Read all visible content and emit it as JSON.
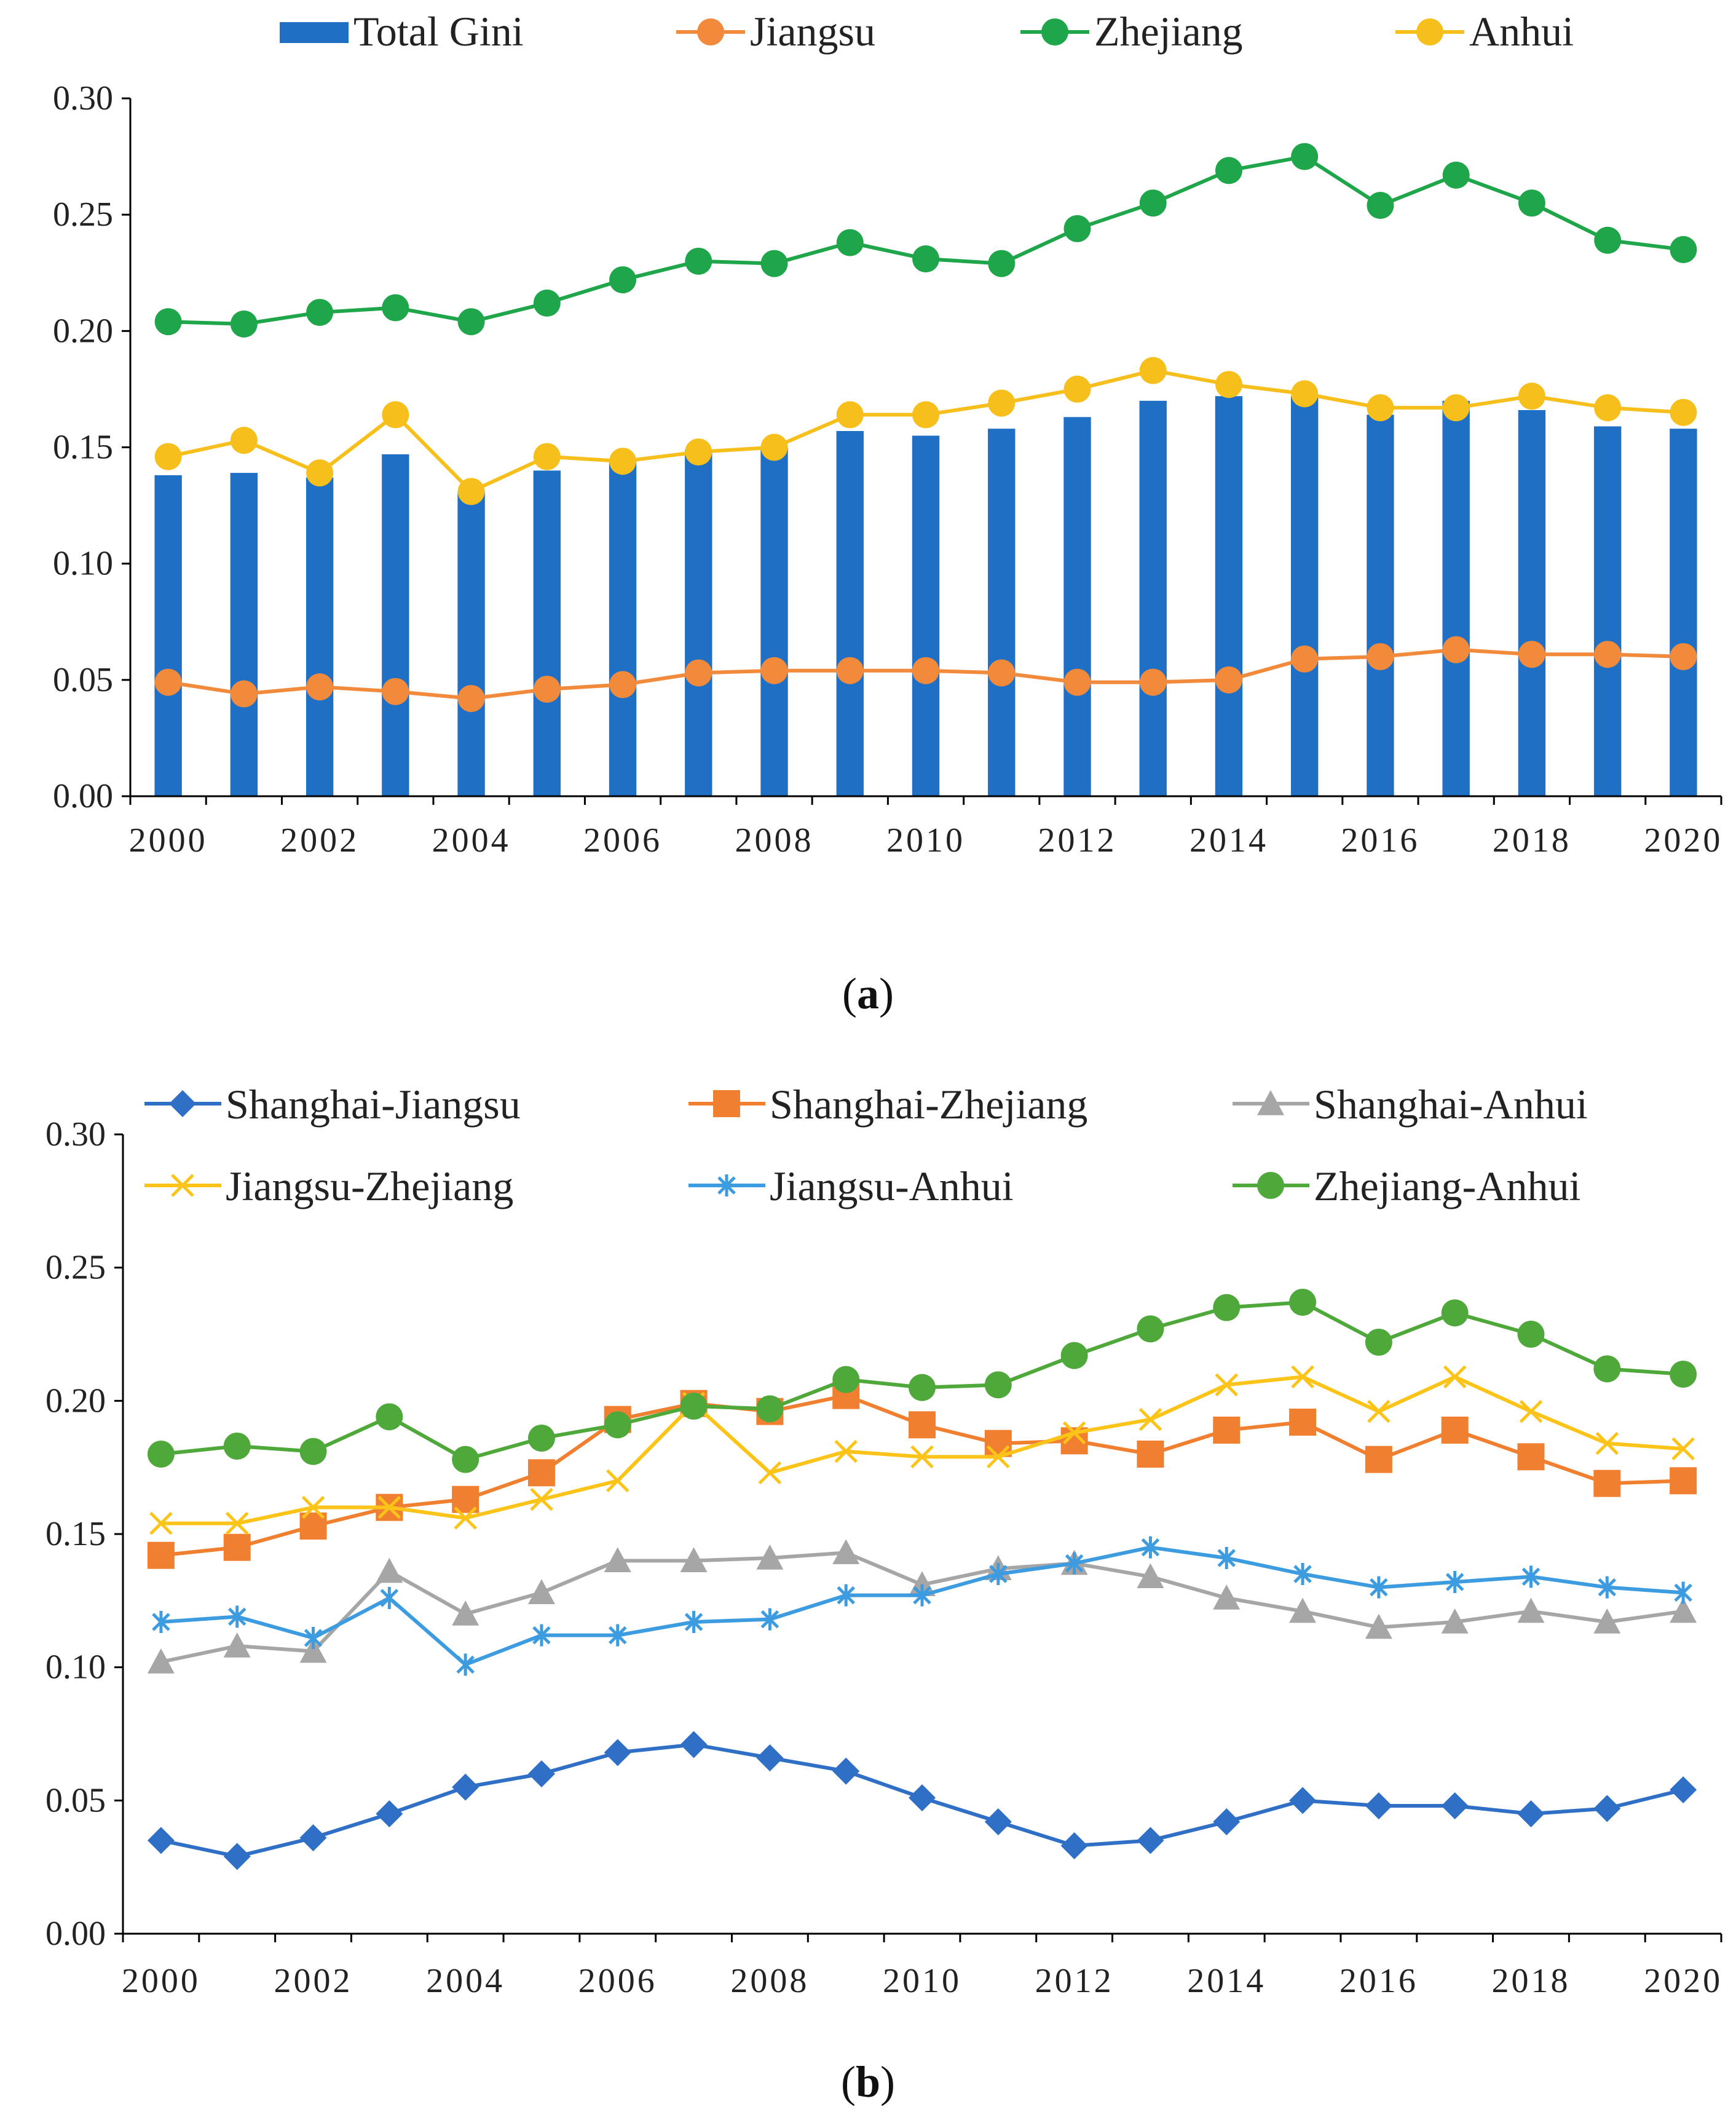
{
  "chart_data": [
    {
      "id": "a",
      "type": "bar",
      "caption_letter": "a",
      "categories": [
        "2000",
        "2001",
        "2002",
        "2003",
        "2004",
        "2005",
        "2006",
        "2007",
        "2008",
        "2009",
        "2010",
        "2011",
        "2012",
        "2013",
        "2014",
        "2015",
        "2016",
        "2017",
        "2018",
        "2019",
        "2020"
      ],
      "x_tick_labels": [
        "2000",
        "2002",
        "2004",
        "2006",
        "2008",
        "2010",
        "2012",
        "2014",
        "2016",
        "2018",
        "2020"
      ],
      "y_tick_labels": [
        "0.00",
        "0.05",
        "0.10",
        "0.15",
        "0.20",
        "0.25",
        "0.30"
      ],
      "ylim": [
        0,
        0.3
      ],
      "bar_series": {
        "name": "Total Gini",
        "color": "#1f6fc5",
        "values": [
          0.138,
          0.139,
          0.137,
          0.147,
          0.131,
          0.14,
          0.144,
          0.149,
          0.15,
          0.157,
          0.155,
          0.158,
          0.163,
          0.17,
          0.172,
          0.172,
          0.164,
          0.17,
          0.166,
          0.159,
          0.158
        ]
      },
      "series": [
        {
          "name": "Jiangsu",
          "color": "#f28a3c",
          "marker": "circle",
          "values": [
            0.049,
            0.044,
            0.047,
            0.045,
            0.042,
            0.046,
            0.048,
            0.053,
            0.054,
            0.054,
            0.054,
            0.053,
            0.049,
            0.049,
            0.05,
            0.059,
            0.06,
            0.063,
            0.061,
            0.061,
            0.06
          ]
        },
        {
          "name": "Zhejiang",
          "color": "#1fa64a",
          "marker": "circle",
          "values": [
            0.204,
            0.203,
            0.208,
            0.21,
            0.204,
            0.212,
            0.222,
            0.23,
            0.229,
            0.238,
            0.231,
            0.229,
            0.244,
            0.255,
            0.269,
            0.275,
            0.254,
            0.267,
            0.255,
            0.239,
            0.235
          ]
        },
        {
          "name": "Anhui",
          "color": "#f7bf1c",
          "marker": "circle",
          "values": [
            0.146,
            0.153,
            0.139,
            0.164,
            0.131,
            0.146,
            0.144,
            0.148,
            0.15,
            0.164,
            0.164,
            0.169,
            0.175,
            0.183,
            0.177,
            0.173,
            0.167,
            0.167,
            0.172,
            0.167,
            0.165
          ]
        }
      ],
      "legend": [
        "Total Gini",
        "Jiangsu",
        "Zhejiang",
        "Anhui"
      ]
    },
    {
      "id": "b",
      "type": "line",
      "caption_letter": "b",
      "categories": [
        "2000",
        "2001",
        "2002",
        "2003",
        "2004",
        "2005",
        "2006",
        "2007",
        "2008",
        "2009",
        "2010",
        "2011",
        "2012",
        "2013",
        "2014",
        "2015",
        "2016",
        "2017",
        "2018",
        "2019",
        "2020"
      ],
      "x_tick_labels": [
        "2000",
        "2002",
        "2004",
        "2006",
        "2008",
        "2010",
        "2012",
        "2014",
        "2016",
        "2018",
        "2020"
      ],
      "y_tick_labels": [
        "0.00",
        "0.05",
        "0.10",
        "0.15",
        "0.20",
        "0.25",
        "0.30"
      ],
      "ylim": [
        0,
        0.3
      ],
      "series": [
        {
          "name": "Shanghai-Jiangsu",
          "color": "#2f6fc6",
          "marker": "diamond",
          "values": [
            0.035,
            0.029,
            0.036,
            0.045,
            0.055,
            0.06,
            0.068,
            0.071,
            0.066,
            0.061,
            0.051,
            0.042,
            0.033,
            0.035,
            0.042,
            0.05,
            0.048,
            0.048,
            0.045,
            0.047,
            0.054
          ]
        },
        {
          "name": "Shanghai-Zhejiang",
          "color": "#f08030",
          "marker": "square",
          "values": [
            0.142,
            0.145,
            0.153,
            0.16,
            0.163,
            0.173,
            0.193,
            0.199,
            0.196,
            0.202,
            0.191,
            0.184,
            0.185,
            0.18,
            0.189,
            0.192,
            0.178,
            0.189,
            0.179,
            0.169,
            0.17
          ]
        },
        {
          "name": "Shanghai-Anhui",
          "color": "#a6a6a6",
          "marker": "triangle",
          "values": [
            0.102,
            0.108,
            0.106,
            0.136,
            0.12,
            0.128,
            0.14,
            0.14,
            0.141,
            0.143,
            0.131,
            0.137,
            0.139,
            0.134,
            0.126,
            0.121,
            0.115,
            0.117,
            0.121,
            0.117,
            0.121
          ]
        },
        {
          "name": "Jiangsu-Zhejiang",
          "color": "#fcc419",
          "marker": "x",
          "values": [
            0.154,
            0.154,
            0.16,
            0.16,
            0.156,
            0.163,
            0.17,
            0.199,
            0.173,
            0.181,
            0.179,
            0.179,
            0.188,
            0.193,
            0.206,
            0.209,
            0.196,
            0.209,
            0.196,
            0.184,
            0.182
          ]
        },
        {
          "name": "Jiangsu-Anhui",
          "color": "#3d9be0",
          "marker": "asterisk",
          "values": [
            0.117,
            0.119,
            0.111,
            0.126,
            0.101,
            0.112,
            0.112,
            0.117,
            0.118,
            0.127,
            0.127,
            0.135,
            0.139,
            0.145,
            0.141,
            0.135,
            0.13,
            0.132,
            0.134,
            0.13,
            0.128
          ]
        },
        {
          "name": "Zhejiang-Anhui",
          "color": "#4fa83a",
          "marker": "circle",
          "values": [
            0.18,
            0.183,
            0.181,
            0.194,
            0.178,
            0.186,
            0.191,
            0.198,
            0.197,
            0.208,
            0.205,
            0.206,
            0.217,
            0.227,
            0.235,
            0.237,
            0.222,
            0.233,
            0.225,
            0.212,
            0.21
          ]
        }
      ],
      "legend": [
        "Shanghai-Jiangsu",
        "Shanghai-Zhejiang",
        "Shanghai-Anhui",
        "Jiangsu-Zhejiang",
        "Jiangsu-Anhui",
        "Zhejiang-Anhui"
      ]
    }
  ]
}
